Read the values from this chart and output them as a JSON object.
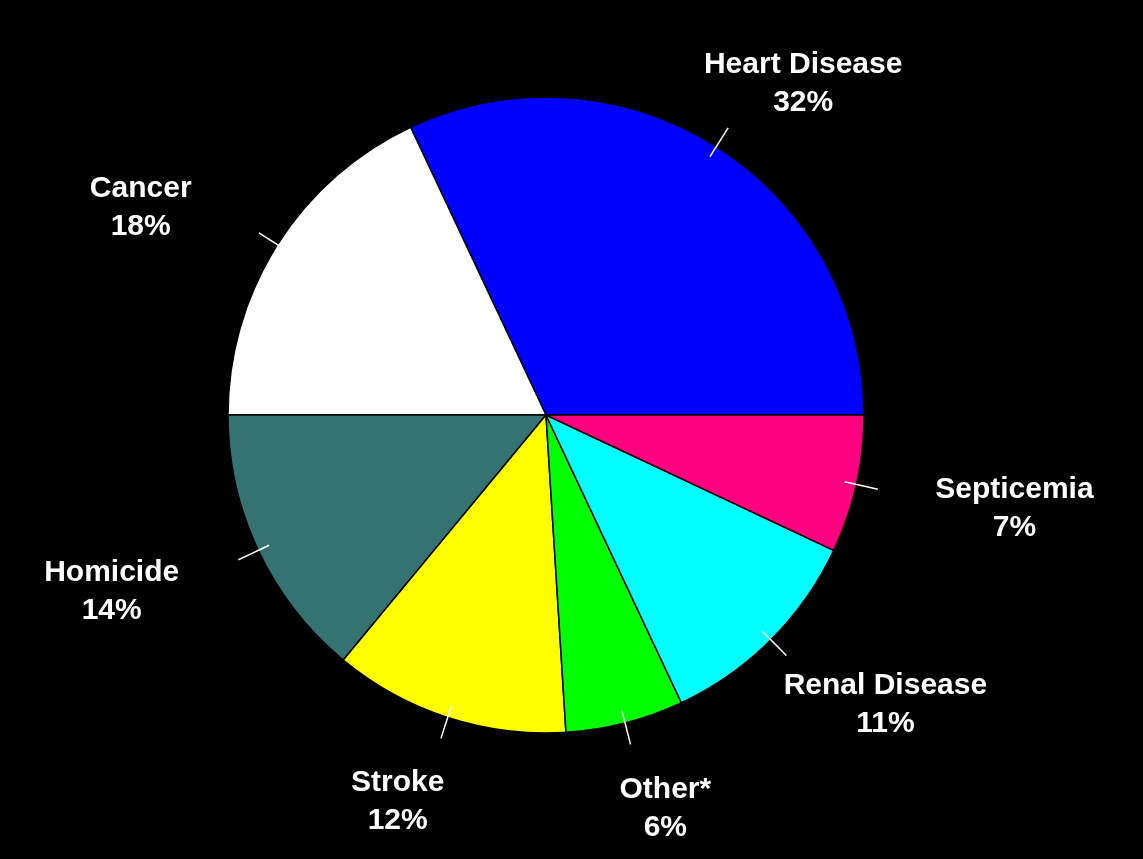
{
  "chart_data": {
    "type": "pie",
    "categories": [
      "Heart Disease",
      "Cancer",
      "Homicide",
      "Stroke",
      "Other*",
      "Renal Disease",
      "Septicemia"
    ],
    "values": [
      32,
      18,
      14,
      12,
      6,
      11,
      7
    ],
    "colors": [
      "#0000ff",
      "#ffffff",
      "#357373",
      "#ffff00",
      "#00ff00",
      "#00ffff",
      "#ff0080"
    ],
    "value_labels": [
      "32%",
      "18%",
      "14%",
      "12%",
      "6%",
      "11%",
      "7%"
    ]
  }
}
